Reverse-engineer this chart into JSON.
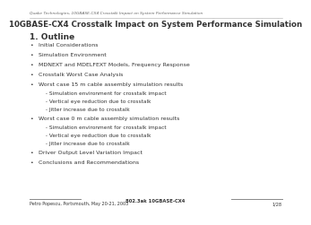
{
  "header_text": "Quake Technologies, 10GBASE-CX4 Crosstalk Impact on System Performance Simulation",
  "title": "10GBASE-CX4 Crosstalk Impact on System Performance Simulation",
  "section": "1. Outline",
  "bullets": [
    "Initial Considerations",
    "Simulation Environment",
    "MDNEXT and MDELFEXT Models, Frequency Response",
    "Crosstalk Worst Case Analysis",
    "Worst case 15 m cable assembly simulation results",
    "Worst case 0 m cable assembly simulation results",
    "Driver Output Level Variation Impact",
    "Conclusions and Recommendations"
  ],
  "sub_bullets_5": [
    " - Simulation environment for crosstalk impact",
    " - Vertical eye reduction due to crosstalk",
    " - Jitter increase due to crosstalk"
  ],
  "sub_bullets_6": [
    " - Simulation environment for crosstalk impact",
    " - Vertical eye reduction due to crosstalk",
    " - Jitter increase due to crosstalk"
  ],
  "footer_left": "Petro Popescu, Portsmouth, May 20-21, 2003",
  "footer_center": "802.3ak 10GBASE-CX4",
  "footer_right": "1/28",
  "bg_color": "#ffffff",
  "text_color": "#333333",
  "header_color": "#666666",
  "title_fontsize": 6.2,
  "header_fontsize": 3.2,
  "section_fontsize": 6.5,
  "bullet_fontsize": 4.5,
  "sub_bullet_fontsize": 4.2,
  "footer_fontsize": 3.5,
  "line_color": "#888888"
}
